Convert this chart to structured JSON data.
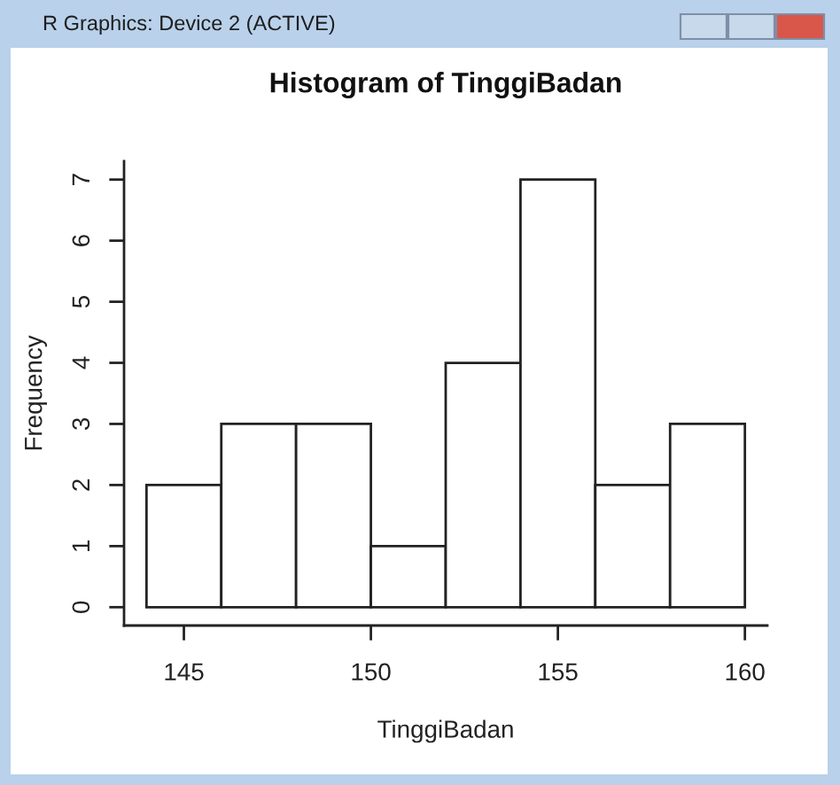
{
  "chart_data": {
    "type": "histogram",
    "title": "Histogram of TinggiBadan",
    "xlabel": "TinggiBadan",
    "ylabel": "Frequency",
    "annotations": [
      "R Graphics: Device 2 (ACTIVE)"
    ],
    "bins": [
      144,
      146,
      148,
      150,
      152,
      154,
      156,
      158,
      160
    ],
    "values": [
      2,
      3,
      3,
      1,
      4,
      7,
      2,
      3
    ],
    "color": "#ffffff",
    "xlim": [
      143.4,
      160.6
    ],
    "ylim": [
      -0.3,
      7.3
    ],
    "xticks": [
      145,
      150,
      155,
      160
    ],
    "yticks": [
      0,
      1,
      2,
      3,
      4,
      5,
      6,
      7
    ],
    "grid": false
  }
}
